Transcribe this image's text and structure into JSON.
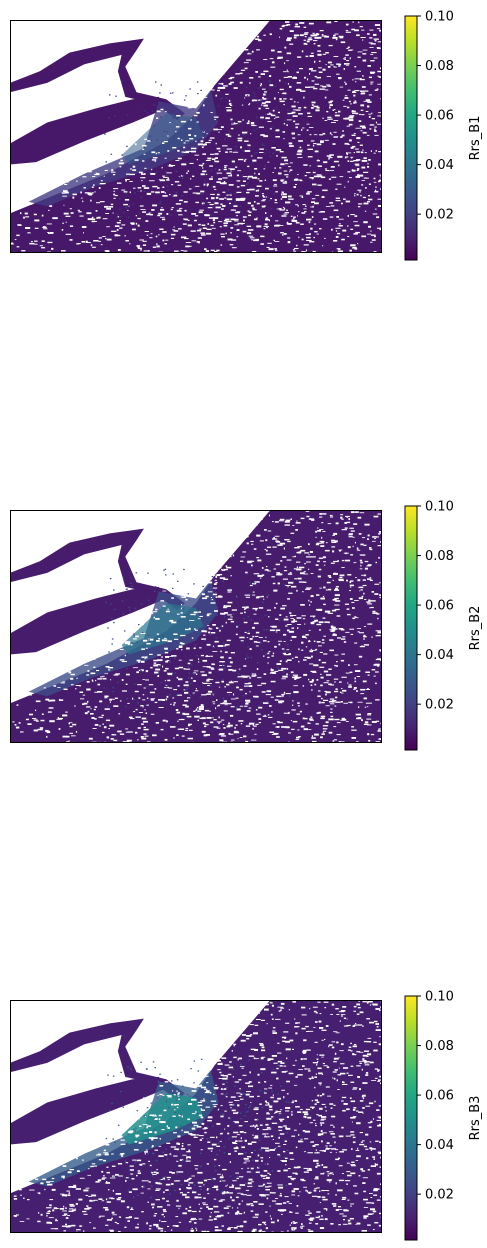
{
  "chart_data": [
    {
      "type": "heatmap",
      "title": "",
      "xlabel": "",
      "ylabel": "",
      "x_ticks_visible": false,
      "y_ticks_visible": false,
      "colormap": "viridis",
      "colorbar": {
        "label": "Rrs_B1",
        "range": [
          0.0015,
          0.1
        ],
        "ticks": [
          0.02,
          0.04,
          0.06,
          0.08,
          0.1
        ],
        "tick_labels": [
          "0.02",
          "0.04",
          "0.06",
          "0.08",
          "0.10"
        ]
      },
      "value_summary": {
        "typical": 0.008,
        "max_visible": 0.03,
        "missing_color": "#ffffff"
      }
    },
    {
      "type": "heatmap",
      "title": "",
      "xlabel": "",
      "ylabel": "",
      "x_ticks_visible": false,
      "y_ticks_visible": false,
      "colormap": "viridis",
      "colorbar": {
        "label": "Rrs_B2",
        "range": [
          0.0015,
          0.1
        ],
        "ticks": [
          0.02,
          0.04,
          0.06,
          0.08,
          0.1
        ],
        "tick_labels": [
          "0.02",
          "0.04",
          "0.06",
          "0.08",
          "0.10"
        ]
      },
      "value_summary": {
        "typical": 0.009,
        "max_visible": 0.04,
        "missing_color": "#ffffff"
      }
    },
    {
      "type": "heatmap",
      "title": "",
      "xlabel": "",
      "ylabel": "",
      "x_ticks_visible": false,
      "y_ticks_visible": false,
      "colormap": "viridis",
      "colorbar": {
        "label": "Rrs_B3",
        "range": [
          0.0015,
          0.1
        ],
        "ticks": [
          0.02,
          0.04,
          0.06,
          0.08,
          0.1
        ],
        "tick_labels": [
          "0.02",
          "0.04",
          "0.06",
          "0.08",
          "0.10"
        ]
      },
      "value_summary": {
        "typical": 0.01,
        "max_visible": 0.05,
        "missing_color": "#ffffff"
      }
    }
  ]
}
